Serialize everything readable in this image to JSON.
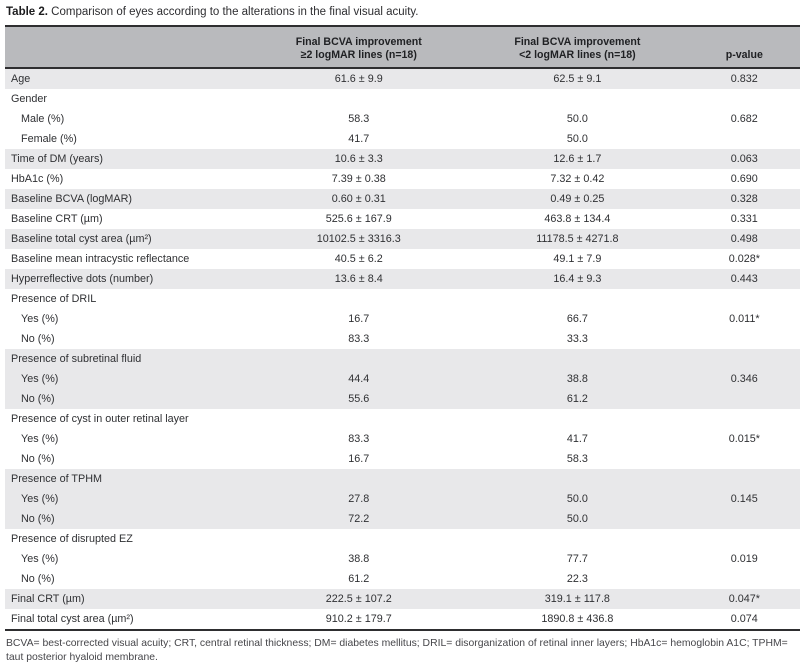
{
  "caption": {
    "label": "Table 2.",
    "text": " Comparison of eyes according to the alterations in the final visual acuity."
  },
  "table": {
    "header": {
      "col2_line1": "Final BCVA improvement",
      "col2_line2": "≥2 logMAR lines (n=18)",
      "col3_line1": "Final BCVA improvement",
      "col3_line2": "<2 logMAR lines (n=18)",
      "col4": "p-value"
    },
    "rows": [
      {
        "label": "Age",
        "v1": "61.6 ± 9.9",
        "v2": "62.5 ± 9.1",
        "p": "0.832",
        "shaded": true,
        "indent": false
      },
      {
        "label": "Gender",
        "v1": "",
        "v2": "",
        "p": "",
        "shaded": false,
        "indent": false
      },
      {
        "label": "Male (%)",
        "v1": "58.3",
        "v2": "50.0",
        "p": "0.682",
        "shaded": false,
        "indent": true
      },
      {
        "label": "Female (%)",
        "v1": "41.7",
        "v2": "50.0",
        "p": "",
        "shaded": false,
        "indent": true
      },
      {
        "label": "Time of DM (years)",
        "v1": "10.6 ± 3.3",
        "v2": "12.6 ± 1.7",
        "p": "0.063",
        "shaded": true,
        "indent": false
      },
      {
        "label": "HbA1c (%)",
        "v1": "7.39 ± 0.38",
        "v2": "7.32 ± 0.42",
        "p": "0.690",
        "shaded": false,
        "indent": false
      },
      {
        "label": "Baseline BCVA (logMAR)",
        "v1": "0.60 ± 0.31",
        "v2": "0.49 ± 0.25",
        "p": "0.328",
        "shaded": true,
        "indent": false
      },
      {
        "label": "Baseline CRT (µm)",
        "v1": "525.6 ± 167.9",
        "v2": "463.8 ± 134.4",
        "p": "0.331",
        "shaded": false,
        "indent": false
      },
      {
        "label": "Baseline total cyst area (µm²)",
        "v1": "10102.5 ± 3316.3",
        "v2": "11178.5 ± 4271.8",
        "p": "0.498",
        "shaded": true,
        "indent": false
      },
      {
        "label": "Baseline mean intracystic reflectance",
        "v1": "40.5 ± 6.2",
        "v2": "49.1 ± 7.9",
        "p": "0.028*",
        "shaded": false,
        "indent": false
      },
      {
        "label": "Hyperreflective dots (number)",
        "v1": "13.6 ± 8.4",
        "v2": "16.4 ± 9.3",
        "p": "0.443",
        "shaded": true,
        "indent": false
      },
      {
        "label": "Presence of DRIL",
        "v1": "",
        "v2": "",
        "p": "",
        "shaded": false,
        "indent": false
      },
      {
        "label": "Yes (%)",
        "v1": "16.7",
        "v2": "66.7",
        "p": "0.011*",
        "shaded": false,
        "indent": true
      },
      {
        "label": "No (%)",
        "v1": "83.3",
        "v2": "33.3",
        "p": "",
        "shaded": false,
        "indent": true
      },
      {
        "label": "Presence of subretinal fluid",
        "v1": "",
        "v2": "",
        "p": "",
        "shaded": true,
        "indent": false
      },
      {
        "label": "Yes (%)",
        "v1": "44.4",
        "v2": "38.8",
        "p": "0.346",
        "shaded": true,
        "indent": true
      },
      {
        "label": "No (%)",
        "v1": "55.6",
        "v2": "61.2",
        "p": "",
        "shaded": true,
        "indent": true
      },
      {
        "label": "Presence of cyst in outer retinal layer",
        "v1": "",
        "v2": "",
        "p": "",
        "shaded": false,
        "indent": false
      },
      {
        "label": "Yes (%)",
        "v1": "83.3",
        "v2": "41.7",
        "p": "0.015*",
        "shaded": false,
        "indent": true
      },
      {
        "label": "No (%)",
        "v1": "16.7",
        "v2": "58.3",
        "p": "",
        "shaded": false,
        "indent": true
      },
      {
        "label": "Presence of TPHM",
        "v1": "",
        "v2": "",
        "p": "",
        "shaded": true,
        "indent": false
      },
      {
        "label": "Yes (%)",
        "v1": "27.8",
        "v2": "50.0",
        "p": "0.145",
        "shaded": true,
        "indent": true
      },
      {
        "label": "No (%)",
        "v1": "72.2",
        "v2": "50.0",
        "p": "",
        "shaded": true,
        "indent": true
      },
      {
        "label": "Presence of disrupted EZ",
        "v1": "",
        "v2": "",
        "p": "",
        "shaded": false,
        "indent": false
      },
      {
        "label": "Yes (%)",
        "v1": "38.8",
        "v2": "77.7",
        "p": "0.019",
        "shaded": false,
        "indent": true
      },
      {
        "label": "No (%)",
        "v1": "61.2",
        "v2": "22.3",
        "p": "",
        "shaded": false,
        "indent": true
      },
      {
        "label": "Final CRT (µm)",
        "v1": "222.5 ± 107.2",
        "v2": "319.1 ± 117.8",
        "p": "0.047*",
        "shaded": true,
        "indent": false
      },
      {
        "label": "Final total cyst area (µm²)",
        "v1": "910.2 ± 179.7",
        "v2": "1890.8 ± 436.8",
        "p": "0.074",
        "shaded": false,
        "indent": false
      }
    ]
  },
  "footnote": "BCVA= best-corrected visual acuity; CRT, central retinal thickness; DM= diabetes mellitus; DRIL= disorganization of retinal inner layers; HbA1c= hemoglobin A1C; TPHM= taut posterior hyaloid membrane."
}
